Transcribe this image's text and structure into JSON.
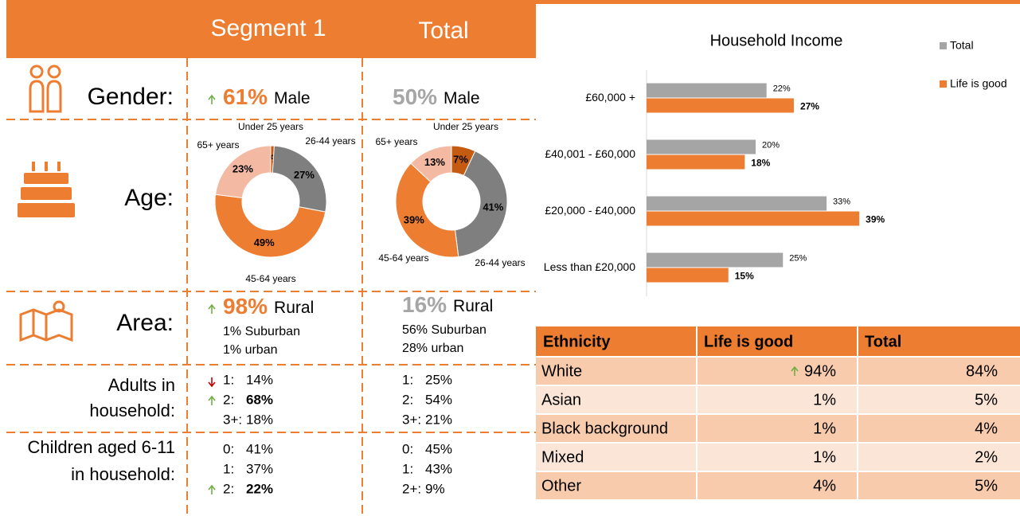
{
  "header": {
    "columns": [
      "Segment 1",
      "Total"
    ]
  },
  "profile": {
    "gender": {
      "label": "Gender:",
      "segment": {
        "value": "61%",
        "text": "Male",
        "trend": "up"
      },
      "total": {
        "value": "50%",
        "text": "Male"
      }
    },
    "age": {
      "label": "Age:"
    },
    "area": {
      "label": "Area:",
      "segment": {
        "value": "98%",
        "text": "Rural",
        "trend": "up",
        "details": [
          "1% Suburban",
          "1% urban"
        ]
      },
      "total": {
        "value": "16%",
        "text": "Rural",
        "details": [
          "56% Suburban",
          "28% urban"
        ]
      }
    },
    "adults": {
      "label_lines": [
        "Adults in",
        "household:"
      ],
      "segment": [
        {
          "key": "1:",
          "value": "14%",
          "trend": "down"
        },
        {
          "key": "2:",
          "value": "68%",
          "trend": "up",
          "highlight": true
        },
        {
          "key": "3+:",
          "value": "18%"
        }
      ],
      "total": [
        {
          "key": "1:",
          "value": "25%"
        },
        {
          "key": "2:",
          "value": "54%"
        },
        {
          "key": "3+:",
          "value": "21%"
        }
      ]
    },
    "children": {
      "label_lines": [
        "Children aged 6-11",
        "in household:"
      ],
      "segment": [
        {
          "key": "0:",
          "value": "41%"
        },
        {
          "key": "1:",
          "value": "37%"
        },
        {
          "key": "2:",
          "value": "22%",
          "trend": "up",
          "highlight": true
        }
      ],
      "total": [
        {
          "key": "0:",
          "value": "45%"
        },
        {
          "key": "1:",
          "value": "43%"
        },
        {
          "key": "2+:",
          "value": "9%"
        }
      ]
    }
  },
  "chart_data": [
    {
      "type": "donut",
      "categories": [
        "Under 25 years",
        "26-44 years",
        "45-64 years",
        "65+ years"
      ],
      "values": [
        1,
        27,
        49,
        23
      ],
      "value_labels": [
        "1%",
        "27%",
        "49%",
        "23%"
      ],
      "colors": [
        "#c55a11",
        "#7f7f7f",
        "#ed7d31",
        "#f4b9a3"
      ]
    },
    {
      "type": "donut",
      "categories": [
        "Under 25 years",
        "26-44 years",
        "45-64 years",
        "65+ years"
      ],
      "values": [
        7,
        41,
        39,
        13
      ],
      "value_labels": [
        "7%",
        "41%",
        "39%",
        "13%"
      ],
      "colors": [
        "#c55a11",
        "#7f7f7f",
        "#ed7d31",
        "#f4b9a3"
      ]
    },
    {
      "type": "hbar",
      "title": "Household Income",
      "categories": [
        "£60,000 +",
        "£40,001 - £60,000",
        "£20,000 - £40,000",
        "Less than £20,000"
      ],
      "series": [
        {
          "name": "Total",
          "color": "#a5a5a5",
          "values": [
            22,
            20,
            33,
            25
          ],
          "value_labels": [
            "22%",
            "20%",
            "33%",
            "25%"
          ]
        },
        {
          "name": "Life is good",
          "color": "#ed7d31",
          "values": [
            27,
            18,
            39,
            15
          ],
          "value_labels": [
            "27%",
            "18%",
            "39%",
            "15%"
          ]
        }
      ],
      "xlim": [
        0,
        60
      ],
      "legend": "right"
    }
  ],
  "ethnicity": {
    "columns": [
      "Ethnicity",
      "Life is good",
      "Total"
    ],
    "rows": [
      {
        "name": "White",
        "life_is_good": "94%",
        "total": "84%",
        "trend": "up"
      },
      {
        "name": "Asian",
        "life_is_good": "1%",
        "total": "5%"
      },
      {
        "name": "Black background",
        "life_is_good": "1%",
        "total": "4%"
      },
      {
        "name": "Mixed",
        "life_is_good": "1%",
        "total": "2%"
      },
      {
        "name": "Other",
        "life_is_good": "4%",
        "total": "5%"
      }
    ]
  }
}
